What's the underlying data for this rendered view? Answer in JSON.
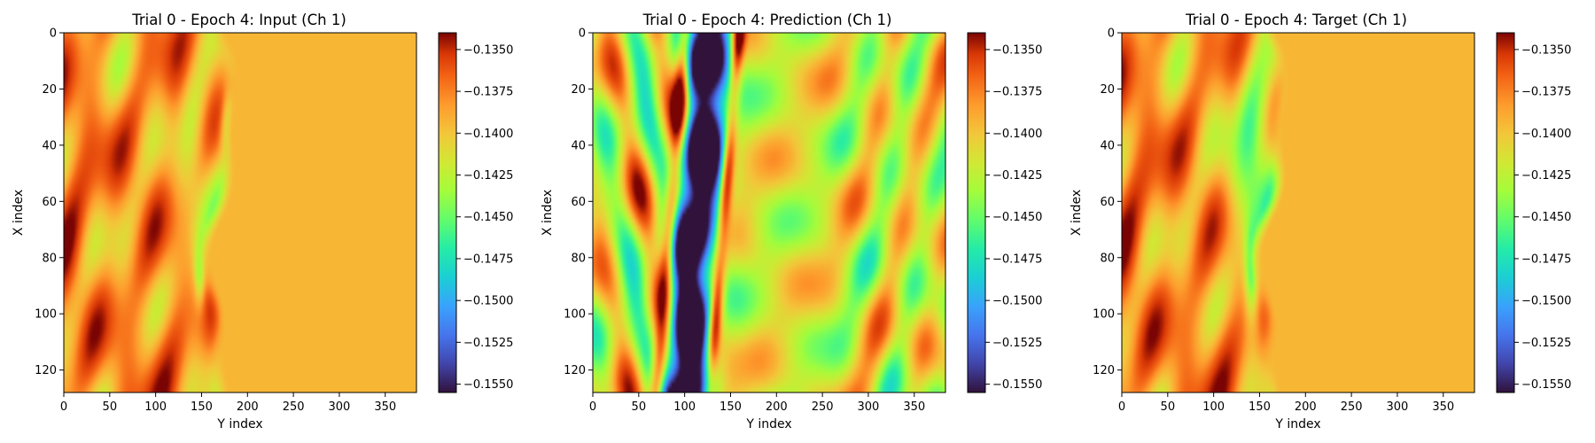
{
  "colormap": "turbo",
  "chart_data": [
    {
      "type": "heatmap",
      "title": "Trial 0 - Epoch 4: Input (Ch 1)",
      "xlabel": "Y index",
      "ylabel": "X index",
      "xlim": [
        0,
        384
      ],
      "ylim": [
        128,
        0
      ],
      "x_ticks": [
        0,
        50,
        100,
        150,
        200,
        250,
        300,
        350
      ],
      "y_ticks": [
        0,
        20,
        40,
        60,
        80,
        100,
        120
      ],
      "colorbar": {
        "vmin": -0.1555,
        "vmax": -0.134,
        "ticks": [
          "−0.1350",
          "−0.1375",
          "−0.1400",
          "−0.1425",
          "−0.1450",
          "−0.1475",
          "−0.1500",
          "−0.1525",
          "−0.1550"
        ],
        "tick_values": [
          -0.135,
          -0.1375,
          -0.14,
          -0.1425,
          -0.145,
          -0.1475,
          -0.15,
          -0.1525,
          -0.155
        ]
      }
    },
    {
      "type": "heatmap",
      "title": "Trial 0 - Epoch 4: Prediction (Ch 1)",
      "xlabel": "Y index",
      "ylabel": "X index",
      "xlim": [
        0,
        384
      ],
      "ylim": [
        128,
        0
      ],
      "x_ticks": [
        0,
        50,
        100,
        150,
        200,
        250,
        300,
        350
      ],
      "y_ticks": [
        0,
        20,
        40,
        60,
        80,
        100,
        120
      ],
      "colorbar": {
        "vmin": -0.1555,
        "vmax": -0.134,
        "ticks": [
          "−0.1350",
          "−0.1375",
          "−0.1400",
          "−0.1425",
          "−0.1450",
          "−0.1475",
          "−0.1500",
          "−0.1525",
          "−0.1550"
        ],
        "tick_values": [
          -0.135,
          -0.1375,
          -0.14,
          -0.1425,
          -0.145,
          -0.1475,
          -0.15,
          -0.1525,
          -0.155
        ]
      }
    },
    {
      "type": "heatmap",
      "title": "Trial 0 - Epoch 4: Target (Ch 1)",
      "xlabel": "Y index",
      "ylabel": "X index",
      "xlim": [
        0,
        384
      ],
      "ylim": [
        128,
        0
      ],
      "x_ticks": [
        0,
        50,
        100,
        150,
        200,
        250,
        300,
        350
      ],
      "y_ticks": [
        0,
        20,
        40,
        60,
        80,
        100,
        120
      ],
      "colorbar": {
        "vmin": -0.1555,
        "vmax": -0.134,
        "ticks": [
          "−0.1350",
          "−0.1375",
          "−0.1400",
          "−0.1425",
          "−0.1450",
          "−0.1475",
          "−0.1500",
          "−0.1525",
          "−0.1550"
        ],
        "tick_values": [
          -0.135,
          -0.1375,
          -0.14,
          -0.1425,
          -0.145,
          -0.1475,
          -0.15,
          -0.1525,
          -0.155
        ]
      }
    }
  ]
}
